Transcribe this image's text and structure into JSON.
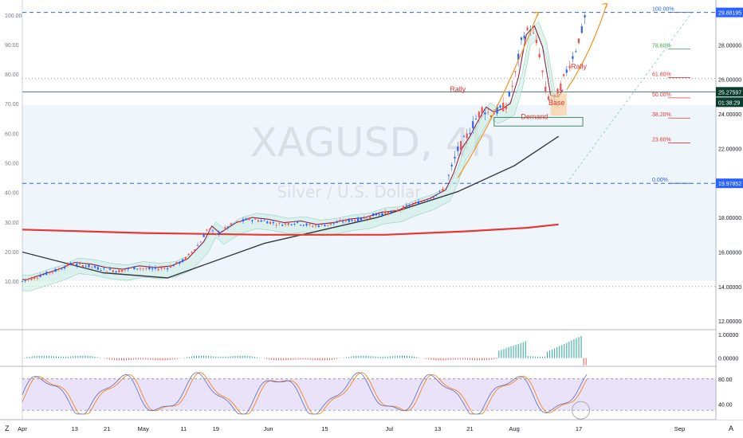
{
  "chart_data": {
    "type": "candlestick",
    "symbol": "XAGUSD",
    "timeframe": "4h",
    "instrument_name": "Silver / U.S. Dollar",
    "price_axis": {
      "ticks": [
        "28.00000",
        "26.00000",
        "24.00000",
        "22.00000",
        "18.00000",
        "16.00000",
        "14.00000",
        "12.00000"
      ],
      "tick_values": [
        28,
        26,
        24,
        22,
        18,
        16,
        14,
        12
      ],
      "range": [
        11.5,
        30.6
      ],
      "badges": [
        {
          "label": "29.88195",
          "value": 29.88,
          "color": "#2962ff"
        },
        {
          "label": "25.27597",
          "value": 25.28,
          "color": "#0b3d2e"
        },
        {
          "label": "01:38:29",
          "value": 24.68,
          "color": "#0b3d2e"
        },
        {
          "label": "19.97852",
          "value": 19.98,
          "color": "#2962ff"
        }
      ]
    },
    "left_scale": {
      "ticks": [
        "100.00",
        "90.00",
        "80.00",
        "70.00",
        "60.00",
        "50.00",
        "40.00",
        "30.00",
        "20.00",
        "10.00"
      ],
      "tick_values": [
        100,
        90,
        80,
        70,
        60,
        50,
        40,
        30,
        20,
        10
      ]
    },
    "time_axis": {
      "ticks": [
        "Apr",
        "13",
        "21",
        "May",
        "11",
        "19",
        "Jun",
        "15",
        "Jul",
        "13",
        "21",
        "Aug",
        "17",
        "Sep"
      ],
      "tick_days": [
        0,
        13,
        21,
        30,
        40,
        48,
        61,
        75,
        91,
        103,
        111,
        122,
        138,
        163
      ],
      "start": "2020-04-01",
      "days_visible": 172
    },
    "price_close": [
      [
        0,
        14.3
      ],
      [
        4,
        14.6
      ],
      [
        8,
        14.9
      ],
      [
        12,
        15.3
      ],
      [
        16,
        15.2
      ],
      [
        20,
        15.0
      ],
      [
        24,
        14.9
      ],
      [
        28,
        15.1
      ],
      [
        32,
        15.0
      ],
      [
        36,
        15.1
      ],
      [
        40,
        15.5
      ],
      [
        44,
        16.5
      ],
      [
        46,
        17.4
      ],
      [
        48,
        17.0
      ],
      [
        52,
        17.6
      ],
      [
        56,
        17.9
      ],
      [
        60,
        17.8
      ],
      [
        64,
        17.6
      ],
      [
        68,
        17.7
      ],
      [
        72,
        17.5
      ],
      [
        76,
        17.6
      ],
      [
        80,
        17.8
      ],
      [
        84,
        17.9
      ],
      [
        88,
        18.2
      ],
      [
        92,
        18.3
      ],
      [
        96,
        18.7
      ],
      [
        100,
        19.0
      ],
      [
        104,
        19.5
      ],
      [
        106,
        20.5
      ],
      [
        108,
        21.9
      ],
      [
        110,
        22.6
      ],
      [
        112,
        23.5
      ],
      [
        114,
        24.3
      ],
      [
        116,
        24.0
      ],
      [
        118,
        24.2
      ],
      [
        120,
        24.5
      ],
      [
        122,
        26.0
      ],
      [
        124,
        28.5
      ],
      [
        126,
        29.0
      ],
      [
        128,
        27.8
      ],
      [
        130,
        25.0
      ],
      [
        131,
        24.9
      ],
      [
        132,
        24.9
      ],
      [
        133,
        25.3
      ],
      [
        135,
        26.5
      ],
      [
        137,
        27.6
      ],
      [
        139,
        29.0
      ],
      [
        140,
        30.2
      ]
    ],
    "moving_averages": [
      {
        "name": "",
        "color": "#363a45",
        "points": [
          [
            0,
            16.0
          ],
          [
            20,
            14.8
          ],
          [
            36,
            14.5
          ],
          [
            60,
            16.5
          ],
          [
            88,
            18.0
          ],
          [
            108,
            19.5
          ],
          [
            122,
            21.0
          ],
          [
            133,
            22.7
          ]
        ]
      },
      {
        "name": "",
        "color": "#e53935",
        "points": [
          [
            0,
            17.3
          ],
          [
            30,
            17.1
          ],
          [
            60,
            17.0
          ],
          [
            90,
            17.0
          ],
          [
            110,
            17.2
          ],
          [
            125,
            17.4
          ],
          [
            133,
            17.6
          ]
        ]
      }
    ],
    "fibonacci": {
      "levels": [
        {
          "label": "100.00%",
          "ratio": 1.0,
          "color": "#2962ff"
        },
        {
          "label": "78.60%",
          "ratio": 0.786,
          "color": "#43a047"
        },
        {
          "label": "61.80%",
          "ratio": 0.618,
          "color": "#e53935"
        },
        {
          "label": "50.00%",
          "ratio": 0.5,
          "color": "#e53935"
        },
        {
          "label": "38.20%",
          "ratio": 0.382,
          "color": "#e53935"
        },
        {
          "label": "23.60%",
          "ratio": 0.236,
          "color": "#e53935"
        },
        {
          "label": "0.00%",
          "ratio": 0.0,
          "color": "#2962ff"
        }
      ],
      "low": 19.98,
      "high": 29.88
    },
    "annotations": [
      {
        "text": "Rally",
        "day": 108,
        "price": 25.3,
        "color": "#e53935"
      },
      {
        "text": "Base",
        "day": 132.5,
        "price": 24.5,
        "color": "#e53935"
      },
      {
        "text": "Rally",
        "day": 138,
        "price": 26.6,
        "color": "#e53935"
      },
      {
        "text": "Demand",
        "day": 127,
        "price": 23.7,
        "color": "#e53935"
      }
    ],
    "oscillator": {
      "ticks": [
        "1.00000",
        "0.00000"
      ],
      "tick_values": [
        1.0,
        0.0
      ],
      "range": [
        -0.35,
        1.2
      ]
    },
    "rsi": {
      "ticks": [
        "80.00",
        "40.00"
      ],
      "tick_values": [
        80,
        40
      ],
      "range": [
        15,
        100
      ],
      "band": [
        30,
        80
      ]
    }
  },
  "ui": {
    "bottom_left_label": "Z",
    "bottom_right_label": "A"
  },
  "colors": {
    "up": "#2962ff",
    "down": "#ef5350",
    "grid_dash": "#2962ff",
    "rsi_band": "#e1d5f7",
    "rally_arrow": "#f7931a",
    "base_box": "#f9cf9c"
  }
}
